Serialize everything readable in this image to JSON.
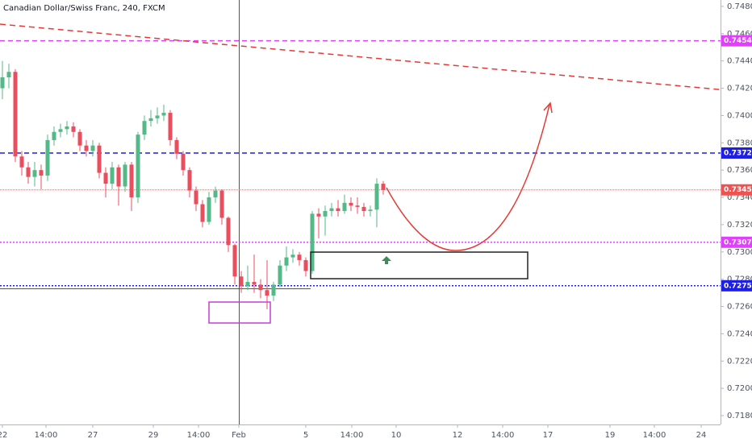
{
  "chart_data": {
    "type": "candlestick",
    "title": "Canadian Dollar/Swiss Franc, 240, FXCM",
    "up_color": "#53b987",
    "down_color": "#eb4d5c",
    "open": [
      0.742,
      0.7428,
      0.7432,
      0.737,
      0.7362,
      0.7355,
      0.736,
      0.7356,
      0.7382,
      0.7388,
      0.739,
      0.7392,
      0.7388,
      0.7378,
      0.7374,
      0.7378,
      0.7358,
      0.735,
      0.7362,
      0.7348,
      0.7364,
      0.734,
      0.7386,
      0.7396,
      0.7398,
      0.74,
      0.7402,
      0.7382,
      0.7372,
      0.736,
      0.7345,
      0.7335,
      0.7322,
      0.734,
      0.7345,
      0.7325,
      0.7305,
      0.7282,
      0.7275,
      0.7278,
      0.7276,
      0.7272,
      0.7268,
      0.7276,
      0.729,
      0.7296,
      0.7298,
      0.7294,
      0.7286,
      0.7328,
      0.7326,
      0.733,
      0.7332,
      0.733,
      0.7336,
      0.7334,
      0.7333,
      0.733,
      0.7331,
      0.735
    ],
    "high": [
      0.744,
      0.7438,
      0.7434,
      0.7374,
      0.7366,
      0.7366,
      0.7364,
      0.7386,
      0.7392,
      0.7394,
      0.7396,
      0.7395,
      0.739,
      0.7382,
      0.7382,
      0.738,
      0.7362,
      0.7366,
      0.7364,
      0.7366,
      0.7366,
      0.7388,
      0.74,
      0.7404,
      0.7406,
      0.7408,
      0.7404,
      0.7384,
      0.7374,
      0.7362,
      0.7348,
      0.7338,
      0.7344,
      0.7348,
      0.7346,
      0.7326,
      0.7306,
      0.7286,
      0.729,
      0.7298,
      0.728,
      0.7294,
      0.7278,
      0.7294,
      0.7304,
      0.7302,
      0.73,
      0.7296,
      0.733,
      0.7332,
      0.7334,
      0.7336,
      0.7338,
      0.7342,
      0.734,
      0.734,
      0.7336,
      0.7334,
      0.7354,
      0.7352
    ],
    "low": [
      0.7412,
      0.742,
      0.7366,
      0.7356,
      0.735,
      0.7348,
      0.7346,
      0.7352,
      0.7378,
      0.7384,
      0.7386,
      0.7384,
      0.7374,
      0.737,
      0.737,
      0.7354,
      0.734,
      0.7346,
      0.7334,
      0.7344,
      0.733,
      0.7336,
      0.7382,
      0.7392,
      0.7394,
      0.7396,
      0.7378,
      0.7368,
      0.7356,
      0.734,
      0.733,
      0.7318,
      0.732,
      0.7336,
      0.732,
      0.73,
      0.7276,
      0.727,
      0.7272,
      0.727,
      0.7266,
      0.7258,
      0.7264,
      0.7274,
      0.7286,
      0.7292,
      0.729,
      0.7282,
      0.7284,
      0.731,
      0.7312,
      0.7326,
      0.7326,
      0.7328,
      0.733,
      0.7328,
      0.7326,
      0.7326,
      0.7318,
      0.7342
    ],
    "close": [
      0.7428,
      0.7432,
      0.737,
      0.7362,
      0.7355,
      0.736,
      0.7356,
      0.7382,
      0.7388,
      0.739,
      0.7392,
      0.7388,
      0.7378,
      0.7374,
      0.7378,
      0.7358,
      0.735,
      0.7362,
      0.7348,
      0.7364,
      0.734,
      0.7386,
      0.7396,
      0.7398,
      0.74,
      0.7402,
      0.7382,
      0.7372,
      0.736,
      0.7345,
      0.7335,
      0.7322,
      0.734,
      0.7345,
      0.7325,
      0.7305,
      0.7282,
      0.7275,
      0.7278,
      0.7276,
      0.7272,
      0.7268,
      0.7276,
      0.729,
      0.7296,
      0.7298,
      0.7294,
      0.7286,
      0.7328,
      0.7326,
      0.733,
      0.7332,
      0.733,
      0.7336,
      0.7334,
      0.7333,
      0.733,
      0.7331,
      0.735,
      0.73455
    ],
    "xlim": [
      -0.375,
      111.25
    ],
    "xticks": [
      {
        "value": 0,
        "label": "22"
      },
      {
        "value": 6.75,
        "label": "14:00"
      },
      {
        "value": 14,
        "label": "27"
      },
      {
        "value": 23.375,
        "label": "29"
      },
      {
        "value": 30.375,
        "label": "14:00"
      },
      {
        "value": 36.625,
        "label": "Feb"
      },
      {
        "value": 47,
        "label": "5"
      },
      {
        "value": 54.125,
        "label": "14:00"
      },
      {
        "value": 61,
        "label": "10"
      },
      {
        "value": 70.5,
        "label": "12"
      },
      {
        "value": 77.5,
        "label": "14:00"
      },
      {
        "value": 84.5,
        "label": "17"
      },
      {
        "value": 94.125,
        "label": "19"
      },
      {
        "value": 101,
        "label": "14:00"
      },
      {
        "value": 108.25,
        "label": "24"
      }
    ],
    "ylim": [
      0.71735,
      0.74847
    ],
    "yticks": [
      {
        "value": 0.718,
        "label": "0.71800"
      },
      {
        "value": 0.72,
        "label": "0.72000"
      },
      {
        "value": 0.722,
        "label": "0.72200"
      },
      {
        "value": 0.724,
        "label": "0.72400"
      },
      {
        "value": 0.726,
        "label": "0.72600"
      },
      {
        "value": 0.728,
        "label": "0.72800"
      },
      {
        "value": 0.73,
        "label": "0.73000"
      },
      {
        "value": 0.732,
        "label": "0.73200"
      },
      {
        "value": 0.734,
        "label": "0.73400"
      },
      {
        "value": 0.736,
        "label": "0.73600"
      },
      {
        "value": 0.738,
        "label": "0.73800"
      },
      {
        "value": 0.74,
        "label": "0.74000"
      },
      {
        "value": 0.742,
        "label": "0.74200"
      },
      {
        "value": 0.744,
        "label": "0.74400"
      },
      {
        "value": 0.746,
        "label": "0.74600"
      },
      {
        "value": 0.748,
        "label": "0.74800"
      }
    ],
    "levels": [
      {
        "value": 0.74548,
        "color": "#e040fb",
        "style": "dashed"
      },
      {
        "value": 0.73725,
        "color": "#1e1ee6",
        "style": "dashed"
      },
      {
        "value": 0.73455,
        "color": "#ef5350",
        "style": "thin"
      },
      {
        "value": 0.73071,
        "color": "#e040fb",
        "style": "dotted"
      },
      {
        "value": 0.72752,
        "color": "#1e1ee6",
        "style": "dotted"
      }
    ],
    "trendline": {
      "color": "#e53935",
      "x": [
        -0.375,
        111.25
      ],
      "y": [
        0.7467,
        0.7419
      ]
    }
  }
}
